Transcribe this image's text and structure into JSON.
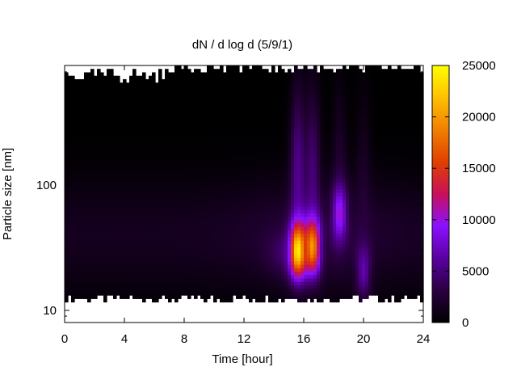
{
  "chart_data": {
    "type": "heatmap",
    "title": "dN / d log d (5/9/1)",
    "xlabel": "Time [hour]",
    "ylabel": "Particle size [nm]",
    "xlim": [
      0,
      24
    ],
    "x_ticks": [
      0,
      4,
      8,
      12,
      16,
      20,
      24
    ],
    "ylim": [
      8,
      900
    ],
    "y_scale": "log",
    "y_ticks": [
      10,
      100
    ],
    "colorbar": {
      "range": [
        0,
        25000
      ],
      "ticks": [
        0,
        5000,
        10000,
        15000,
        20000,
        25000
      ],
      "colormap": [
        "#000000",
        "#2a0040",
        "#5a00a0",
        "#8a10ff",
        "#c8105a",
        "#e04000",
        "#f08000",
        "#ffc000",
        "#ffff00"
      ]
    },
    "features": [
      {
        "x_center": 15.6,
        "y_center_nm": 30,
        "peak": 18000
      },
      {
        "x_center": 16.6,
        "y_center_nm": 32,
        "peak": 15000
      },
      {
        "x_center": 18.4,
        "y_center_nm": 60,
        "peak": 7000
      },
      {
        "x_center": 20.0,
        "y_center_nm": 20,
        "peak": 5000
      }
    ]
  }
}
